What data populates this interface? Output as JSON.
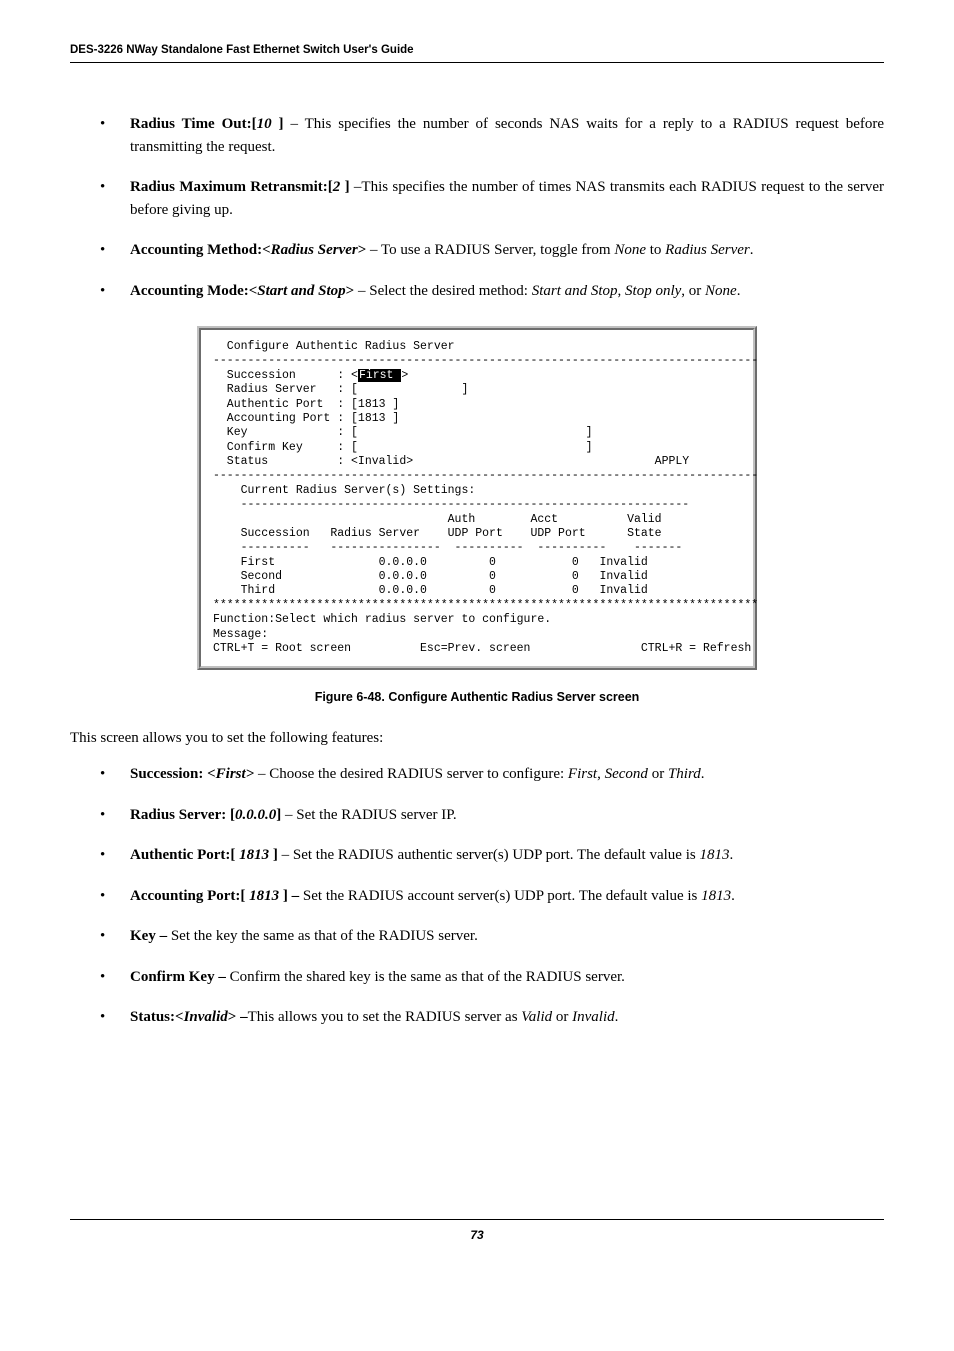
{
  "header": {
    "title": "DES-3226 NWay Standalone Fast Ethernet Switch User's Guide"
  },
  "bullets_top": [
    {
      "label": "Radius Time Out:[",
      "label_ital": "10",
      "label_suffix": " ]",
      "desc": " – This specifies the number of seconds NAS waits for a reply to a RADIUS request before transmitting the request."
    },
    {
      "label": "Radius Maximum Retransmit:[",
      "label_ital": "2",
      "label_suffix": " ]",
      "desc": " –This specifies the number of times NAS transmits each RADIUS request to the server before giving up."
    },
    {
      "label": "Accounting Method:<",
      "label_ital": "Radius Server",
      "label_suffix": ">",
      "desc": " – To use a RADIUS Server, toggle from ",
      "ital1": "None",
      "mid": " to ",
      "ital2": "Radius Server",
      "tail": "."
    },
    {
      "label": "Accounting Mode:<",
      "label_ital": "Start and Stop",
      "label_suffix": ">",
      "desc": " – Select the desired method: ",
      "ital1": "Start and Stop",
      "mid": ", ",
      "ital2": "Stop only",
      "tail": ", or ",
      "ital3": "None",
      "tail2": "."
    }
  ],
  "figure": {
    "caption": "Figure 6-48.  Configure Authentic Radius Server screen",
    "lines": {
      "title": "  Configure Authentic Radius Server",
      "dash1": "-------------------------------------------------------------------------------",
      "succession_label": "  Succession      : <",
      "succession_val": "First ",
      "succession_end": ">",
      "radius_server": "  Radius Server   : [               ]",
      "auth_port": "  Authentic Port  : [1813 ]",
      "acct_port": "  Accounting Port : [1813 ]",
      "key": "  Key             : [                                 ]",
      "confirm": "  Confirm Key     : [                                 ]",
      "status": "  Status          : <Invalid>                                   APPLY",
      "dash2": "-------------------------------------------------------------------------------",
      "current": "    Current Radius Server(s) Settings:",
      "dash3": "    -----------------------------------------------------------------",
      "hdr1": "                                  Auth        Acct          Valid",
      "hdr2": "    Succession   Radius Server    UDP Port    UDP Port      State",
      "dash4": "    ----------   ----------------  ----------  ----------    -------",
      "row1": "    First               0.0.0.0         0           0   Invalid",
      "row2": "    Second              0.0.0.0         0           0   Invalid",
      "row3": "    Third               0.0.0.0         0           0   Invalid",
      "stars": "*******************************************************************************",
      "func": "Function:Select which radius server to configure.",
      "msg": "Message:",
      "foot": "CTRL+T = Root screen          Esc=Prev. screen                CTRL+R = Refresh"
    }
  },
  "intro": "This screen allows you to set the following features:",
  "bullets_bottom": [
    {
      "label": "Succession: ",
      "label_ital_pre": "<",
      "label_ital": "First",
      "label_ital_post": ">",
      "desc": " – Choose the desired RADIUS server to configure: ",
      "ital1": "First",
      "mid": ", ",
      "ital2": "Second",
      "tail": " or ",
      "ital3": "Third",
      "tail2": "."
    },
    {
      "label": "Radius Server: [",
      "label_ital": "0.0.0.0",
      "label_suffix": "]",
      "desc": " – Set the RADIUS server IP."
    },
    {
      "label": "Authentic Port:[",
      "label_ital": " 1813 ",
      "label_suffix": "]",
      "desc": " – Set the RADIUS authentic server(s) UDP port. The default value is ",
      "ital1": "1813",
      "tail": "."
    },
    {
      "label": "Accounting Port:[",
      "label_ital": " 1813  ",
      "label_suffix": "] –",
      "desc": " Set the RADIUS account server(s) UDP port. The default value is ",
      "ital1": "1813",
      "tail": "."
    },
    {
      "label": "Key –",
      "desc": " Set the key the same as that of the RADIUS server."
    },
    {
      "label": "Confirm Key –",
      "desc": " Confirm the shared key is the same as that of the RADIUS server."
    },
    {
      "label": "Status:",
      "label_ital_pre": "<",
      "label_ital": "Invalid",
      "label_ital_post": "> –",
      "desc": "This allows you to set the RADIUS server as ",
      "ital1": "Valid",
      "mid": " or ",
      "ital2": "Invalid",
      "tail": "."
    }
  ],
  "footer": {
    "page": "73"
  }
}
